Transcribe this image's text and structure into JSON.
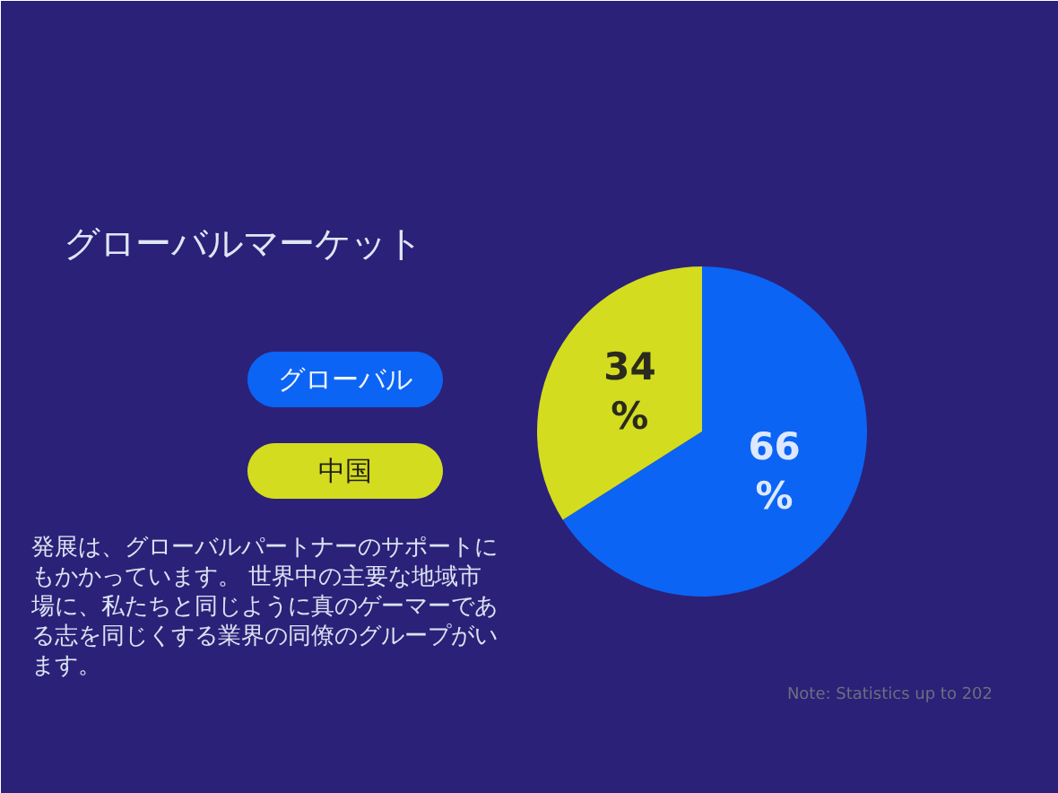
{
  "chart_data": {
    "type": "pie",
    "title": "グローバルマーケット",
    "categories": [
      "グローバル",
      "中国"
    ],
    "values": [
      66,
      34
    ],
    "colors": [
      "#0b64f4",
      "#d3dc1f"
    ],
    "value_labels": [
      "66\n%",
      "34\n%"
    ],
    "legend": "left",
    "annotations": [
      "発展は、グローバルパートナーのサポートにもかかっています。 世界中の主要な地域市場に、私たちと同じように真のゲーマーである志を同じくする業界の同僚のグループがいます。",
      "Note: Statistics up to 202"
    ]
  }
}
